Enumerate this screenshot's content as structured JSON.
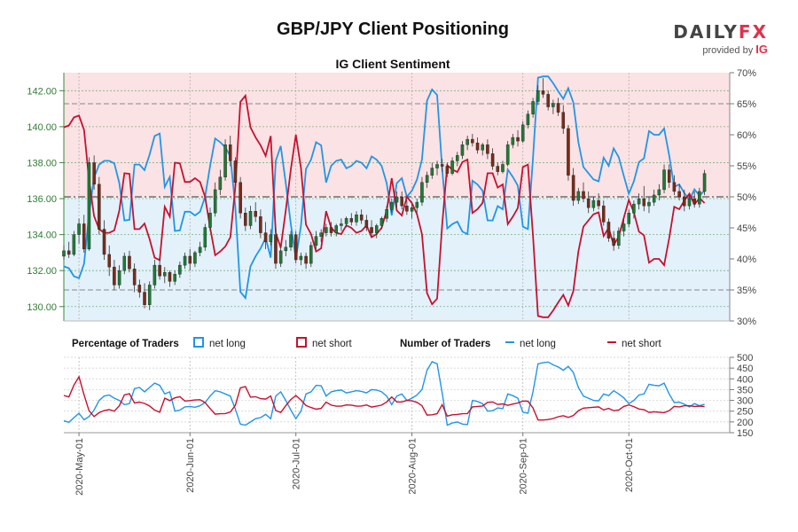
{
  "header": {
    "title": "GBP/JPY Client Positioning",
    "brand_main": "DAILY",
    "brand_fx": "FX",
    "brand_sub": "provided by",
    "brand_ig": "IG"
  },
  "chart_data": {
    "type": "candlestick",
    "title": "IG Client Sentiment",
    "price_axis": {
      "ticks": [
        "130.00",
        "132.00",
        "134.00",
        "136.00",
        "138.00",
        "140.00",
        "142.00"
      ],
      "ylim": [
        129.2,
        143.0
      ]
    },
    "pct_axis": {
      "ticks": [
        "30%",
        "35%",
        "40%",
        "45%",
        "50%",
        "55%",
        "60%",
        "65%",
        "70%"
      ],
      "ylim": [
        30,
        70
      ]
    },
    "count_axis": {
      "ticks": [
        "150",
        "200",
        "250",
        "300",
        "350",
        "400",
        "450",
        "500"
      ],
      "ylim": [
        150,
        500
      ]
    },
    "x_ticks": [
      "2020-May-01",
      "2020-Jun-01",
      "2020-Jul-01",
      "2020-Aug-01",
      "2020-Sep-01",
      "2020-Oct-01"
    ],
    "legend": {
      "pct_label": "Percentage of Traders",
      "count_label": "Number of Traders",
      "net_long": "net long",
      "net_short": "net short"
    },
    "colors": {
      "long": "#2196e6",
      "short": "#c8102e",
      "up": "#1e7b34",
      "down": "#7a2b18",
      "short_zone": "#fbe2e4",
      "long_zone": "#e3f1fb"
    },
    "start_date": "2020-04-27",
    "candles": [
      [
        132.8,
        133.4,
        132.6,
        133.1
      ],
      [
        133.1,
        133.6,
        132.7,
        132.9
      ],
      [
        132.9,
        134.2,
        132.8,
        134.0
      ],
      [
        134.0,
        134.9,
        133.5,
        134.6
      ],
      [
        134.6,
        135.1,
        133.0,
        133.2
      ],
      [
        133.2,
        138.3,
        133.1,
        138.0
      ],
      [
        138.0,
        138.4,
        136.5,
        136.8
      ],
      [
        136.8,
        137.2,
        134.0,
        134.3
      ],
      [
        134.3,
        134.8,
        132.6,
        132.9
      ],
      [
        132.9,
        133.4,
        131.7,
        132.2
      ],
      [
        132.2,
        132.6,
        130.9,
        131.2
      ],
      [
        131.2,
        132.3,
        131.0,
        132.0
      ],
      [
        132.0,
        133.0,
        131.8,
        132.8
      ],
      [
        132.8,
        133.1,
        131.9,
        132.1
      ],
      [
        132.1,
        132.4,
        130.8,
        131.2
      ],
      [
        131.2,
        131.5,
        130.5,
        130.8
      ],
      [
        130.8,
        131.3,
        129.9,
        130.1
      ],
      [
        130.1,
        131.4,
        129.8,
        131.2
      ],
      [
        131.2,
        132.6,
        131.0,
        132.3
      ],
      [
        132.3,
        132.7,
        131.5,
        131.7
      ],
      [
        131.7,
        132.2,
        131.3,
        131.9
      ],
      [
        131.9,
        132.0,
        131.1,
        131.4
      ],
      [
        131.4,
        132.0,
        131.2,
        131.8
      ],
      [
        131.8,
        132.5,
        131.6,
        132.3
      ],
      [
        132.3,
        133.0,
        132.1,
        132.8
      ],
      [
        132.8,
        133.2,
        132.0,
        132.4
      ],
      [
        132.4,
        133.1,
        132.2,
        133.0
      ],
      [
        133.0,
        133.6,
        132.8,
        133.3
      ],
      [
        133.3,
        134.6,
        133.1,
        134.4
      ],
      [
        134.4,
        135.5,
        134.2,
        135.2
      ],
      [
        135.2,
        136.9,
        135.0,
        136.5
      ],
      [
        136.5,
        137.6,
        136.2,
        137.2
      ],
      [
        137.2,
        139.3,
        137.0,
        139.0
      ],
      [
        139.0,
        139.5,
        137.8,
        138.1
      ],
      [
        138.1,
        138.3,
        136.7,
        136.9
      ],
      [
        136.9,
        137.2,
        134.9,
        135.2
      ],
      [
        135.2,
        135.5,
        134.2,
        134.5
      ],
      [
        134.5,
        135.6,
        134.3,
        135.3
      ],
      [
        135.3,
        135.8,
        134.7,
        135.0
      ],
      [
        135.0,
        135.4,
        133.8,
        134.1
      ],
      [
        134.1,
        134.7,
        133.2,
        133.6
      ],
      [
        133.6,
        134.3,
        133.4,
        134.0
      ],
      [
        134.0,
        134.4,
        132.1,
        132.4
      ],
      [
        132.4,
        133.3,
        132.2,
        133.1
      ],
      [
        133.1,
        133.7,
        132.8,
        133.3
      ],
      [
        133.3,
        134.2,
        133.1,
        134.0
      ],
      [
        134.0,
        134.2,
        132.4,
        132.6
      ],
      [
        132.6,
        133.0,
        132.3,
        132.8
      ],
      [
        132.8,
        133.0,
        132.1,
        132.4
      ],
      [
        132.4,
        133.6,
        132.2,
        133.4
      ],
      [
        133.4,
        134.2,
        133.2,
        133.9
      ],
      [
        133.9,
        134.3,
        133.6,
        134.1
      ],
      [
        134.1,
        134.6,
        133.9,
        134.4
      ],
      [
        134.4,
        134.7,
        133.9,
        134.1
      ],
      [
        134.1,
        134.6,
        133.9,
        134.5
      ],
      [
        134.5,
        134.9,
        134.2,
        134.6
      ],
      [
        134.6,
        135.0,
        134.4,
        134.9
      ],
      [
        134.9,
        135.2,
        134.5,
        134.7
      ],
      [
        134.7,
        135.3,
        134.5,
        135.1
      ],
      [
        135.1,
        135.4,
        134.6,
        134.8
      ],
      [
        134.8,
        135.1,
        134.2,
        134.4
      ],
      [
        134.4,
        134.8,
        133.9,
        134.1
      ],
      [
        134.1,
        134.6,
        133.8,
        134.5
      ],
      [
        134.5,
        135.0,
        134.3,
        134.9
      ],
      [
        134.9,
        135.6,
        134.7,
        135.4
      ],
      [
        135.4,
        136.0,
        135.2,
        135.8
      ],
      [
        135.8,
        136.4,
        135.5,
        136.1
      ],
      [
        136.1,
        136.4,
        135.4,
        135.6
      ],
      [
        135.6,
        135.9,
        135.1,
        135.3
      ],
      [
        135.3,
        135.7,
        134.9,
        135.5
      ],
      [
        135.5,
        136.0,
        135.2,
        135.8
      ],
      [
        135.8,
        137.2,
        135.6,
        136.9
      ],
      [
        136.9,
        137.5,
        136.6,
        137.3
      ],
      [
        137.3,
        138.0,
        137.1,
        137.7
      ],
      [
        137.7,
        138.1,
        137.3,
        137.9
      ],
      [
        137.9,
        138.2,
        137.5,
        137.8
      ],
      [
        137.8,
        138.0,
        137.2,
        137.4
      ],
      [
        137.4,
        138.3,
        137.3,
        138.1
      ],
      [
        138.1,
        138.6,
        137.8,
        138.4
      ],
      [
        138.4,
        139.2,
        138.2,
        139.0
      ],
      [
        139.0,
        139.5,
        138.7,
        139.3
      ],
      [
        139.3,
        139.6,
        138.9,
        139.1
      ],
      [
        139.1,
        139.4,
        138.5,
        138.7
      ],
      [
        138.7,
        139.1,
        138.4,
        139.0
      ],
      [
        139.0,
        139.3,
        138.2,
        138.5
      ],
      [
        138.5,
        138.8,
        137.6,
        137.8
      ],
      [
        137.8,
        138.0,
        137.3,
        137.5
      ],
      [
        137.5,
        138.1,
        137.4,
        137.9
      ],
      [
        137.9,
        139.2,
        137.8,
        139.0
      ],
      [
        139.0,
        139.6,
        138.8,
        139.4
      ],
      [
        139.4,
        139.8,
        138.9,
        139.2
      ],
      [
        139.2,
        140.3,
        139.1,
        140.1
      ],
      [
        140.1,
        140.9,
        139.9,
        140.7
      ],
      [
        140.7,
        141.6,
        140.5,
        141.4
      ],
      [
        141.4,
        142.3,
        141.2,
        142.0
      ],
      [
        142.0,
        142.7,
        141.6,
        141.8
      ],
      [
        141.8,
        142.0,
        140.9,
        141.1
      ],
      [
        141.1,
        141.5,
        140.7,
        141.3
      ],
      [
        141.3,
        141.6,
        140.6,
        140.8
      ],
      [
        140.8,
        141.2,
        139.6,
        139.9
      ],
      [
        139.9,
        140.1,
        137.0,
        137.3
      ],
      [
        137.3,
        137.7,
        135.6,
        135.9
      ],
      [
        135.9,
        136.6,
        135.7,
        136.4
      ],
      [
        136.4,
        136.9,
        135.8,
        136.0
      ],
      [
        136.0,
        136.4,
        135.2,
        135.5
      ],
      [
        135.5,
        136.1,
        135.3,
        135.9
      ],
      [
        135.9,
        136.3,
        135.4,
        135.6
      ],
      [
        135.6,
        135.9,
        134.5,
        134.7
      ],
      [
        134.7,
        134.9,
        133.6,
        133.8
      ],
      [
        133.8,
        134.2,
        133.1,
        133.4
      ],
      [
        133.4,
        134.4,
        133.2,
        134.2
      ],
      [
        134.2,
        134.9,
        133.9,
        134.6
      ],
      [
        134.6,
        135.4,
        134.4,
        135.2
      ],
      [
        135.2,
        135.9,
        134.9,
        135.7
      ],
      [
        135.7,
        136.3,
        135.4,
        136.0
      ],
      [
        136.0,
        136.7,
        135.3,
        135.6
      ],
      [
        135.6,
        136.1,
        135.2,
        135.8
      ],
      [
        135.8,
        136.5,
        135.6,
        136.2
      ],
      [
        136.2,
        136.8,
        135.9,
        136.5
      ],
      [
        136.5,
        137.9,
        136.3,
        137.6
      ],
      [
        137.6,
        137.9,
        136.6,
        136.9
      ],
      [
        136.9,
        137.3,
        136.2,
        136.4
      ],
      [
        136.4,
        136.8,
        135.9,
        136.1
      ],
      [
        136.1,
        136.5,
        135.3,
        135.6
      ],
      [
        135.6,
        136.2,
        135.4,
        136.0
      ],
      [
        136.0,
        136.4,
        135.5,
        135.7
      ],
      [
        135.7,
        136.6,
        135.5,
        136.4
      ],
      [
        136.4,
        137.6,
        136.2,
        137.4
      ]
    ],
    "pct_long": [
      38.8,
      38.5,
      37.2,
      36.9,
      39.2,
      47.2,
      53.1,
      55.2,
      55.8,
      55.8,
      55.4,
      52.2,
      46.2,
      46.3,
      55.2,
      55.2,
      54.3,
      56.8,
      59.8,
      60.2,
      51.6,
      53.2,
      44.5,
      44.6,
      47.6,
      47.6,
      47.0,
      47.6,
      50.0,
      55.0,
      59.4,
      58.8,
      58.0,
      56.5,
      48.4,
      34.7,
      33.7,
      38.8,
      40.4,
      41.7,
      43.4,
      40.2,
      55.8,
      58.2,
      52.2,
      45.6,
      40.0,
      45.3,
      54.5,
      56.0,
      58.8,
      58.3,
      52.3,
      55.0,
      55.8,
      56.0,
      54.6,
      55.0,
      55.8,
      55.5,
      54.6,
      56.5,
      56.0,
      55.0,
      52.2,
      47.0,
      52.2,
      53.0,
      50.0,
      51.0,
      52.8,
      56.0,
      65.5,
      67.3,
      66.4,
      54.5,
      44.9,
      45.6,
      46.0,
      44.4,
      44.0,
      52.6,
      52.0,
      51.0,
      46.2,
      46.2,
      48.5,
      48.0,
      54.4,
      53.2,
      51.8,
      45.2,
      44.8,
      56.2,
      69.2,
      69.4,
      69.4,
      68.3,
      67.0,
      65.8,
      67.5,
      65.2,
      58.8,
      54.8,
      53.8,
      52.8,
      52.5,
      56.3,
      55.0,
      57.8,
      56.4,
      53.4,
      50.5,
      52.5,
      55.6,
      56.2,
      60.6,
      60.0,
      60.0,
      61.0,
      56.7,
      51.6,
      52.0,
      50.6,
      49.5,
      51.2,
      50.2,
      51.0
    ],
    "long_count": [
      205,
      198,
      220,
      240,
      210,
      225,
      255,
      300,
      320,
      325,
      310,
      300,
      280,
      285,
      355,
      360,
      340,
      360,
      380,
      370,
      330,
      340,
      250,
      255,
      270,
      272,
      268,
      275,
      290,
      320,
      345,
      340,
      330,
      320,
      260,
      190,
      185,
      200,
      215,
      220,
      235,
      215,
      320,
      340,
      300,
      255,
      215,
      250,
      330,
      340,
      370,
      368,
      320,
      340,
      345,
      348,
      335,
      340,
      345,
      342,
      335,
      350,
      348,
      340,
      320,
      280,
      320,
      330,
      300,
      310,
      325,
      350,
      440,
      480,
      470,
      335,
      185,
      195,
      200,
      190,
      188,
      300,
      295,
      285,
      250,
      252,
      265,
      262,
      330,
      322,
      310,
      245,
      240,
      340,
      470,
      475,
      478,
      465,
      455,
      440,
      458,
      430,
      360,
      320,
      310,
      300,
      298,
      330,
      322,
      345,
      330,
      312,
      285,
      300,
      325,
      330,
      375,
      370,
      368,
      380,
      330,
      290,
      292,
      282,
      270,
      285,
      275,
      282
    ]
  }
}
